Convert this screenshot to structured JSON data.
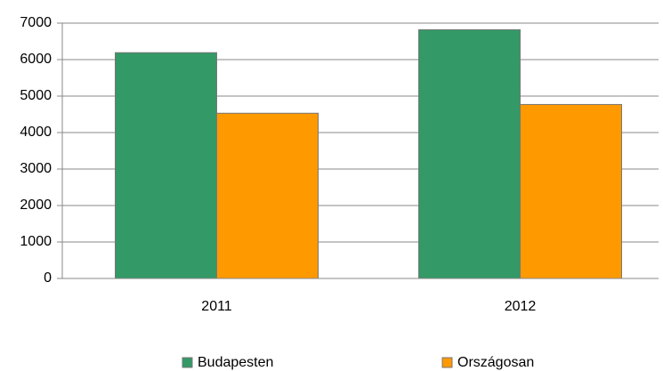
{
  "chart_data": {
    "type": "bar",
    "categories": [
      "2011",
      "2012"
    ],
    "series": [
      {
        "name": "Budapesten",
        "color": "#339966",
        "values": [
          6190,
          6820
        ]
      },
      {
        "name": "Országosan",
        "color": "#ff9900",
        "values": [
          4530,
          4770
        ]
      }
    ],
    "ylim": [
      0,
      7000
    ],
    "yticks": [
      0,
      1000,
      2000,
      3000,
      4000,
      5000,
      6000,
      7000
    ],
    "grid": true,
    "legend": "bottom"
  }
}
